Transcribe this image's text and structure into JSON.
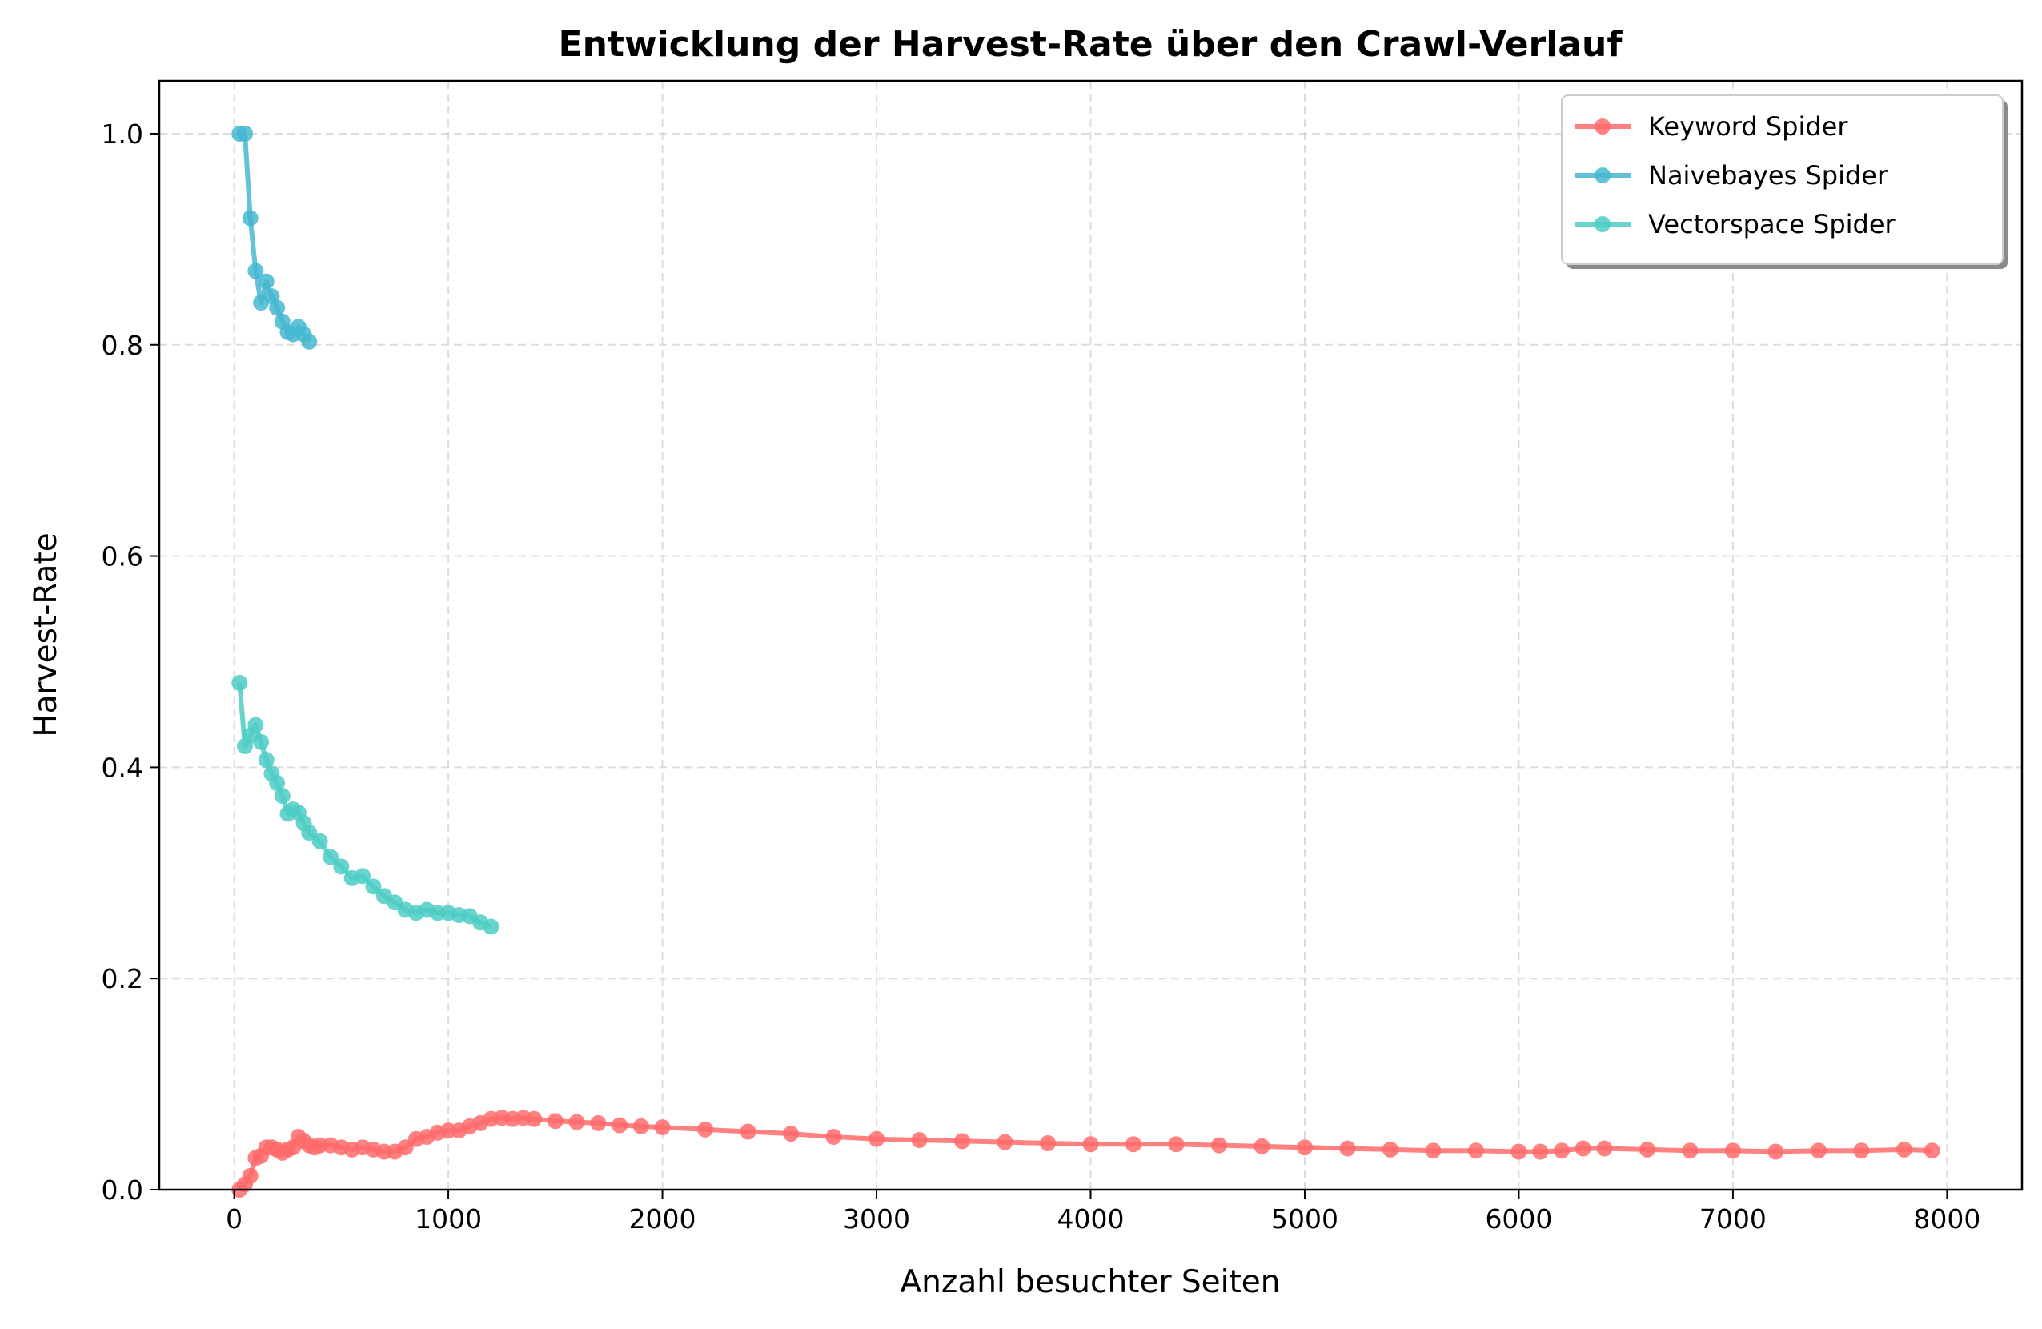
{
  "chart_data": {
    "type": "line",
    "title": "Entwicklung der Harvest-Rate über den Crawl-Verlauf",
    "xlabel": "Anzahl besuchter Seiten",
    "ylabel": "Harvest-Rate",
    "xlim": [
      -350,
      8350
    ],
    "ylim": [
      0,
      1.05
    ],
    "xticks": [
      0,
      1000,
      2000,
      3000,
      4000,
      5000,
      6000,
      7000,
      8000
    ],
    "xtick_labels": [
      "0",
      "1000",
      "2000",
      "3000",
      "4000",
      "5000",
      "6000",
      "7000",
      "8000"
    ],
    "yticks": [
      0.0,
      0.2,
      0.4,
      0.6,
      0.8,
      1.0
    ],
    "ytick_labels": [
      "0.0",
      "0.2",
      "0.4",
      "0.6",
      "0.8",
      "1.0"
    ],
    "grid": true,
    "legend_position": "top-right",
    "series": [
      {
        "name": "Keyword Spider",
        "color": "#ff6b6b",
        "points": [
          [
            25,
            0.0
          ],
          [
            50,
            0.005
          ],
          [
            75,
            0.013
          ],
          [
            100,
            0.03
          ],
          [
            125,
            0.032
          ],
          [
            150,
            0.04
          ],
          [
            175,
            0.04
          ],
          [
            200,
            0.038
          ],
          [
            225,
            0.035
          ],
          [
            250,
            0.038
          ],
          [
            275,
            0.04
          ],
          [
            300,
            0.05
          ],
          [
            325,
            0.046
          ],
          [
            350,
            0.042
          ],
          [
            375,
            0.04
          ],
          [
            400,
            0.042
          ],
          [
            450,
            0.042
          ],
          [
            500,
            0.04
          ],
          [
            550,
            0.038
          ],
          [
            600,
            0.04
          ],
          [
            650,
            0.038
          ],
          [
            700,
            0.036
          ],
          [
            750,
            0.036
          ],
          [
            800,
            0.04
          ],
          [
            850,
            0.048
          ],
          [
            900,
            0.05
          ],
          [
            950,
            0.054
          ],
          [
            1000,
            0.056
          ],
          [
            1050,
            0.056
          ],
          [
            1100,
            0.06
          ],
          [
            1150,
            0.063
          ],
          [
            1200,
            0.067
          ],
          [
            1250,
            0.068
          ],
          [
            1300,
            0.067
          ],
          [
            1350,
            0.068
          ],
          [
            1400,
            0.067
          ],
          [
            1500,
            0.065
          ],
          [
            1600,
            0.064
          ],
          [
            1700,
            0.063
          ],
          [
            1800,
            0.061
          ],
          [
            1900,
            0.06
          ],
          [
            2000,
            0.059
          ],
          [
            2200,
            0.057
          ],
          [
            2400,
            0.055
          ],
          [
            2600,
            0.053
          ],
          [
            2800,
            0.05
          ],
          [
            3000,
            0.048
          ],
          [
            3200,
            0.047
          ],
          [
            3400,
            0.046
          ],
          [
            3600,
            0.045
          ],
          [
            3800,
            0.044
          ],
          [
            4000,
            0.043
          ],
          [
            4200,
            0.043
          ],
          [
            4400,
            0.043
          ],
          [
            4600,
            0.042
          ],
          [
            4800,
            0.041
          ],
          [
            5000,
            0.04
          ],
          [
            5200,
            0.039
          ],
          [
            5400,
            0.038
          ],
          [
            5600,
            0.037
          ],
          [
            5800,
            0.037
          ],
          [
            6000,
            0.036
          ],
          [
            6100,
            0.036
          ],
          [
            6200,
            0.037
          ],
          [
            6300,
            0.039
          ],
          [
            6400,
            0.039
          ],
          [
            6600,
            0.038
          ],
          [
            6800,
            0.037
          ],
          [
            7000,
            0.037
          ],
          [
            7200,
            0.036
          ],
          [
            7400,
            0.037
          ],
          [
            7600,
            0.037
          ],
          [
            7800,
            0.038
          ],
          [
            7930,
            0.037
          ]
        ]
      },
      {
        "name": "Naivebayes Spider",
        "color": "#45b7d1",
        "points": [
          [
            25,
            1.0
          ],
          [
            50,
            1.0
          ],
          [
            75,
            0.92
          ],
          [
            100,
            0.87
          ],
          [
            125,
            0.84
          ],
          [
            150,
            0.86
          ],
          [
            175,
            0.846
          ],
          [
            200,
            0.835
          ],
          [
            225,
            0.822
          ],
          [
            250,
            0.812
          ],
          [
            275,
            0.81
          ],
          [
            300,
            0.817
          ],
          [
            325,
            0.81
          ],
          [
            350,
            0.803
          ]
        ]
      },
      {
        "name": "Vectorspace Spider",
        "color": "#4ecdc4",
        "points": [
          [
            25,
            0.48
          ],
          [
            50,
            0.42
          ],
          [
            75,
            0.43
          ],
          [
            100,
            0.44
          ],
          [
            125,
            0.424
          ],
          [
            150,
            0.407
          ],
          [
            175,
            0.394
          ],
          [
            200,
            0.385
          ],
          [
            225,
            0.373
          ],
          [
            250,
            0.356
          ],
          [
            275,
            0.36
          ],
          [
            300,
            0.357
          ],
          [
            325,
            0.347
          ],
          [
            350,
            0.338
          ],
          [
            400,
            0.33
          ],
          [
            450,
            0.315
          ],
          [
            500,
            0.306
          ],
          [
            550,
            0.295
          ],
          [
            600,
            0.297
          ],
          [
            650,
            0.287
          ],
          [
            700,
            0.278
          ],
          [
            750,
            0.272
          ],
          [
            800,
            0.265
          ],
          [
            850,
            0.262
          ],
          [
            900,
            0.265
          ],
          [
            950,
            0.262
          ],
          [
            1000,
            0.262
          ],
          [
            1050,
            0.26
          ],
          [
            1100,
            0.259
          ],
          [
            1150,
            0.253
          ],
          [
            1200,
            0.249
          ]
        ]
      }
    ]
  }
}
